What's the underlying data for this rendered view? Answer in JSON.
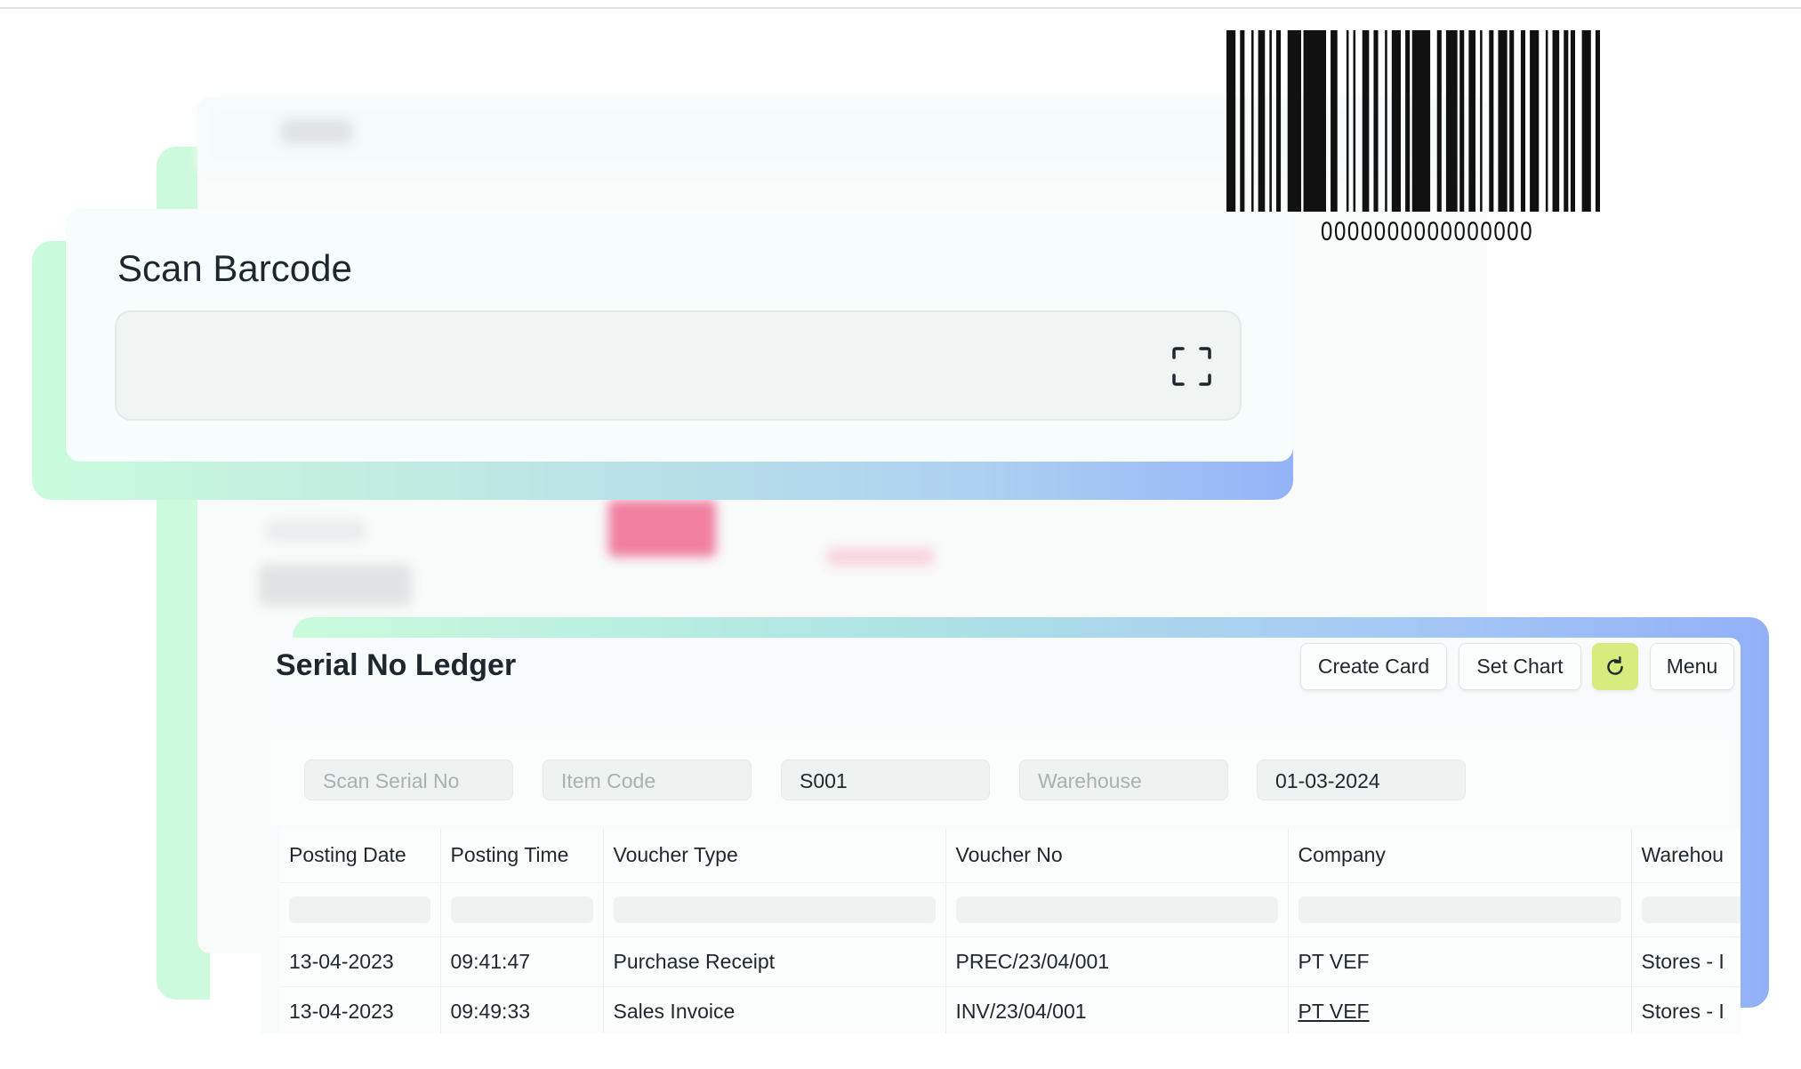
{
  "barcode": {
    "digits": "0000000000000000"
  },
  "scan_barcode": {
    "title": "Scan Barcode",
    "input_value": "",
    "icon": "scan-frame-icon"
  },
  "ledger": {
    "title": "Serial No Ledger",
    "buttons": {
      "create_card": "Create Card",
      "set_chart": "Set Chart",
      "refresh_icon": "refresh-icon",
      "menu": "Menu"
    },
    "filters": [
      {
        "placeholder": "Scan Serial No",
        "value": ""
      },
      {
        "placeholder": "Item Code",
        "value": ""
      },
      {
        "placeholder": "",
        "value": "S001"
      },
      {
        "placeholder": "Warehouse",
        "value": ""
      },
      {
        "placeholder": "",
        "value": "01-03-2024"
      }
    ],
    "columns": [
      "Posting Date",
      "Posting Time",
      "Voucher Type",
      "Voucher No",
      "Company",
      "Warehou"
    ],
    "rows": [
      [
        "13-04-2023",
        "09:41:47",
        "Purchase Receipt",
        "PREC/23/04/001",
        "PT VEF",
        "Stores - I"
      ],
      [
        "13-04-2023",
        "09:49:33",
        "Sales Invoice",
        "INV/23/04/001",
        "PT VEF",
        "Stores - I"
      ]
    ]
  },
  "colors": {
    "accent_refresh": "#d6ec7e",
    "pink_block": "#f07fa0",
    "gradient_start": "#c9fbdc",
    "gradient_end": "#93b0f7"
  }
}
